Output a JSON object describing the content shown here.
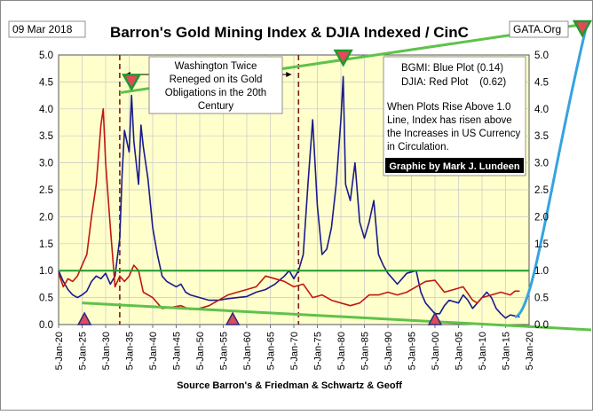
{
  "chart_data": {
    "type": "line",
    "title": "Barron's Gold Mining Index & DJIA Indexed / CinC",
    "date_label": "09 Mar 2018",
    "source_tag": "GATA.Org",
    "xlabel": "Source Barron's & Friedman & Schwartz & Geoff",
    "x_tick_labels": [
      "5-Jan-20",
      "5-Jan-25",
      "5-Jan-30",
      "5-Jan-35",
      "5-Jan-40",
      "5-Jan-45",
      "5-Jan-50",
      "5-Jan-55",
      "5-Jan-60",
      "5-Jan-65",
      "5-Jan-70",
      "5-Jan-75",
      "5-Jan-80",
      "5-Jan-85",
      "5-Jan-90",
      "5-Jan-95",
      "5-Jan-00",
      "5-Jan-05",
      "5-Jan-10",
      "5-Jan-15",
      "5-Jan-20"
    ],
    "xlim": [
      1920,
      2020
    ],
    "ylim": [
      0,
      5
    ],
    "y_ticks": [
      "0.0",
      "0.5",
      "1.0",
      "1.5",
      "2.0",
      "2.5",
      "3.0",
      "3.5",
      "4.0",
      "4.5",
      "5.0"
    ],
    "grid": true,
    "legend": [
      "BGMI: Blue Plot (0.14)",
      "DJIA: Red Plot    (0.62)"
    ],
    "annotation_box": [
      "Washington Twice",
      "Reneged on its Gold",
      "Obligations in the 20th",
      "Century"
    ],
    "note": [
      "When Plots Rise Above 1.0",
      "Line, Index has risen above",
      "the Increases in US Currency",
      "in Circulation."
    ],
    "credit": "Graphic by Mark J. Lundeen",
    "series": [
      {
        "name": "BGMI",
        "color": "#1a1a8c",
        "points": [
          [
            1920,
            1.0
          ],
          [
            1921,
            0.8
          ],
          [
            1922,
            0.65
          ],
          [
            1923,
            0.55
          ],
          [
            1924,
            0.5
          ],
          [
            1925,
            0.55
          ],
          [
            1926,
            0.62
          ],
          [
            1927,
            0.8
          ],
          [
            1928,
            0.9
          ],
          [
            1929,
            0.85
          ],
          [
            1930,
            0.95
          ],
          [
            1931,
            0.75
          ],
          [
            1932,
            0.9
          ],
          [
            1933,
            1.6
          ],
          [
            1933.5,
            2.8
          ],
          [
            1934,
            3.6
          ],
          [
            1935,
            3.2
          ],
          [
            1935.5,
            4.25
          ],
          [
            1936,
            3.4
          ],
          [
            1937,
            2.6
          ],
          [
            1937.5,
            3.7
          ],
          [
            1938,
            3.3
          ],
          [
            1939,
            2.7
          ],
          [
            1940,
            1.8
          ],
          [
            1941,
            1.3
          ],
          [
            1942,
            0.9
          ],
          [
            1943,
            0.8
          ],
          [
            1944,
            0.75
          ],
          [
            1945,
            0.7
          ],
          [
            1946,
            0.75
          ],
          [
            1947,
            0.6
          ],
          [
            1948,
            0.55
          ],
          [
            1950,
            0.5
          ],
          [
            1952,
            0.45
          ],
          [
            1954,
            0.45
          ],
          [
            1956,
            0.48
          ],
          [
            1958,
            0.5
          ],
          [
            1960,
            0.52
          ],
          [
            1962,
            0.6
          ],
          [
            1964,
            0.65
          ],
          [
            1966,
            0.75
          ],
          [
            1968,
            0.9
          ],
          [
            1969,
            1.0
          ],
          [
            1970,
            0.85
          ],
          [
            1971,
            1.0
          ],
          [
            1972,
            1.3
          ],
          [
            1973,
            2.6
          ],
          [
            1974,
            3.8
          ],
          [
            1975,
            2.2
          ],
          [
            1976,
            1.3
          ],
          [
            1977,
            1.4
          ],
          [
            1978,
            1.8
          ],
          [
            1979,
            2.6
          ],
          [
            1980,
            3.8
          ],
          [
            1980.5,
            4.6
          ],
          [
            1981,
            2.6
          ],
          [
            1982,
            2.3
          ],
          [
            1983,
            3.0
          ],
          [
            1984,
            1.9
          ],
          [
            1985,
            1.6
          ],
          [
            1986,
            1.9
          ],
          [
            1987,
            2.3
          ],
          [
            1988,
            1.3
          ],
          [
            1989,
            1.1
          ],
          [
            1990,
            0.95
          ],
          [
            1992,
            0.75
          ],
          [
            1994,
            0.95
          ],
          [
            1996,
            1.0
          ],
          [
            1997,
            0.6
          ],
          [
            1998,
            0.4
          ],
          [
            1999,
            0.3
          ],
          [
            2000,
            0.2
          ],
          [
            2001,
            0.2
          ],
          [
            2002,
            0.35
          ],
          [
            2003,
            0.45
          ],
          [
            2005,
            0.4
          ],
          [
            2006,
            0.55
          ],
          [
            2007,
            0.45
          ],
          [
            2008,
            0.3
          ],
          [
            2010,
            0.5
          ],
          [
            2011,
            0.6
          ],
          [
            2012,
            0.5
          ],
          [
            2013,
            0.3
          ],
          [
            2014,
            0.2
          ],
          [
            2015,
            0.12
          ],
          [
            2016,
            0.18
          ],
          [
            2017,
            0.16
          ],
          [
            2018,
            0.14
          ]
        ]
      },
      {
        "name": "DJIA",
        "color": "#c0180f",
        "points": [
          [
            1920,
            0.95
          ],
          [
            1921,
            0.7
          ],
          [
            1922,
            0.85
          ],
          [
            1923,
            0.8
          ],
          [
            1924,
            0.9
          ],
          [
            1925,
            1.1
          ],
          [
            1926,
            1.3
          ],
          [
            1927,
            2.0
          ],
          [
            1928,
            2.6
          ],
          [
            1929,
            3.7
          ],
          [
            1929.5,
            4.0
          ],
          [
            1930,
            3.0
          ],
          [
            1931,
            1.8
          ],
          [
            1932,
            0.7
          ],
          [
            1933,
            0.9
          ],
          [
            1934,
            0.8
          ],
          [
            1935,
            0.9
          ],
          [
            1936,
            1.1
          ],
          [
            1937,
            1.0
          ],
          [
            1938,
            0.6
          ],
          [
            1940,
            0.5
          ],
          [
            1942,
            0.3
          ],
          [
            1944,
            0.32
          ],
          [
            1946,
            0.35
          ],
          [
            1948,
            0.28
          ],
          [
            1950,
            0.3
          ],
          [
            1952,
            0.35
          ],
          [
            1954,
            0.45
          ],
          [
            1956,
            0.55
          ],
          [
            1958,
            0.6
          ],
          [
            1960,
            0.65
          ],
          [
            1962,
            0.7
          ],
          [
            1964,
            0.9
          ],
          [
            1966,
            0.85
          ],
          [
            1968,
            0.8
          ],
          [
            1970,
            0.7
          ],
          [
            1972,
            0.75
          ],
          [
            1974,
            0.5
          ],
          [
            1976,
            0.55
          ],
          [
            1978,
            0.45
          ],
          [
            1980,
            0.4
          ],
          [
            1982,
            0.35
          ],
          [
            1984,
            0.4
          ],
          [
            1986,
            0.55
          ],
          [
            1988,
            0.55
          ],
          [
            1990,
            0.6
          ],
          [
            1992,
            0.55
          ],
          [
            1994,
            0.6
          ],
          [
            1996,
            0.7
          ],
          [
            1998,
            0.8
          ],
          [
            2000,
            0.82
          ],
          [
            2002,
            0.6
          ],
          [
            2004,
            0.65
          ],
          [
            2006,
            0.7
          ],
          [
            2008,
            0.45
          ],
          [
            2009,
            0.4
          ],
          [
            2010,
            0.5
          ],
          [
            2012,
            0.55
          ],
          [
            2014,
            0.6
          ],
          [
            2016,
            0.55
          ],
          [
            2017,
            0.62
          ],
          [
            2018,
            0.62
          ]
        ]
      }
    ],
    "reference_line": 1.0,
    "event_lines": [
      1933,
      1971
    ],
    "upper_trend": [
      [
        1933,
        4.3
      ],
      [
        2020,
        5.5
      ]
    ],
    "lower_trend": [
      [
        1925,
        0.4
      ],
      [
        2020,
        0.0
      ]
    ],
    "up_markers": [
      [
        1925.5,
        0.0
      ],
      [
        1957,
        0.0
      ],
      [
        2000,
        0.0
      ]
    ],
    "down_markers": [
      [
        1935.5,
        4.5
      ],
      [
        1980.5,
        4.95
      ],
      [
        2020,
        5.5
      ]
    ]
  }
}
